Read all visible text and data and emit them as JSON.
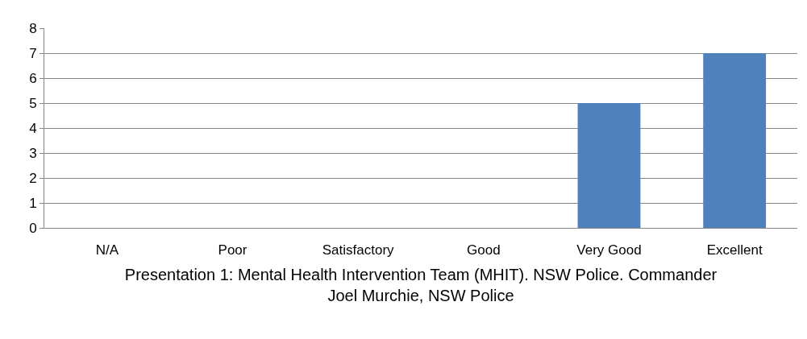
{
  "chart_data": {
    "type": "bar",
    "xlabel": "Presentation 1: Mental Health Intervention Team (MHIT). NSW Police. Commander Joel Murchie, NSW Police",
    "categories": [
      "N/A",
      "Poor",
      "Satisfactory",
      "Good",
      "Very Good",
      "Excellent"
    ],
    "values": [
      0,
      0,
      0,
      0,
      5,
      7
    ],
    "color": "#4f81bd",
    "ylim": [
      0,
      8
    ],
    "yticks": [
      0,
      1,
      2,
      3,
      4,
      5,
      6,
      7,
      8
    ],
    "grid": "y"
  }
}
